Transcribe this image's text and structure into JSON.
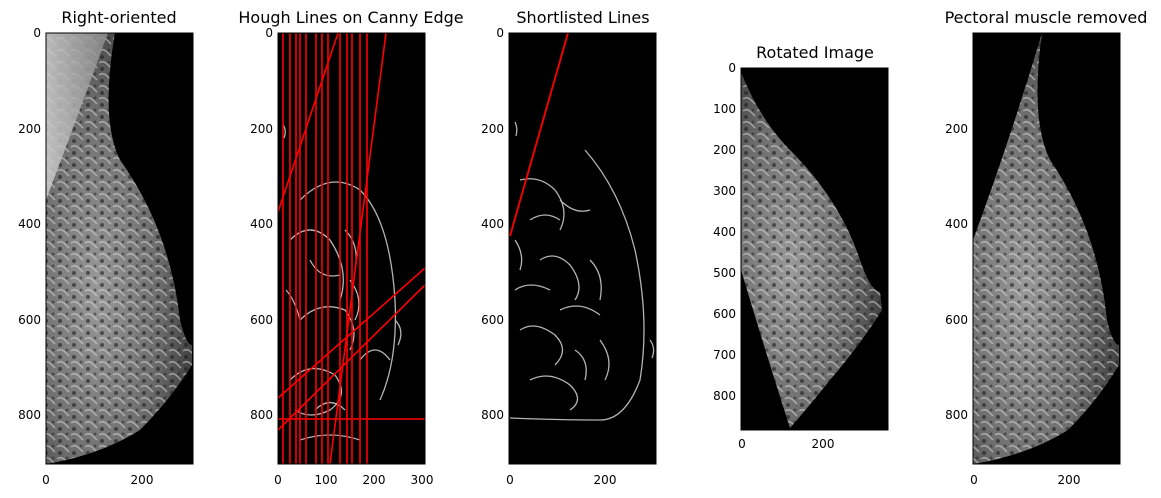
{
  "panels": [
    {
      "title": "Right-oriented",
      "yticks": [
        "0",
        "200",
        "400",
        "600",
        "800"
      ],
      "xticks": [
        "0",
        "200"
      ],
      "image": "mammogram-breast-with-pectoral-muscle"
    },
    {
      "title": "Hough Lines on Canny Edge",
      "yticks": [
        "0",
        "200",
        "400",
        "600",
        "800"
      ],
      "xticks": [
        "0",
        "100",
        "200",
        "300"
      ],
      "image": "canny-edges-with-red-hough-lines"
    },
    {
      "title": "Shortlisted Lines",
      "yticks": [
        "0",
        "200",
        "400",
        "600",
        "800"
      ],
      "xticks": [
        "0",
        "200"
      ],
      "image": "canny-edges-with-selected-red-line"
    },
    {
      "title": "Rotated Image",
      "yticks": [
        "0",
        "100",
        "200",
        "300",
        "400",
        "500",
        "600",
        "700",
        "800"
      ],
      "xticks": [
        "0",
        "200"
      ],
      "image": "rotated-mammogram"
    },
    {
      "title": "Pectoral muscle removed",
      "yticks": [
        "200",
        "400",
        "600",
        "800"
      ],
      "xticks": [
        "0",
        "200"
      ],
      "image": "mammogram-pectoral-removed"
    }
  ],
  "colors": {
    "hough_line": "#ff0000",
    "edge": "#b4b4b4",
    "background": "#000000"
  }
}
